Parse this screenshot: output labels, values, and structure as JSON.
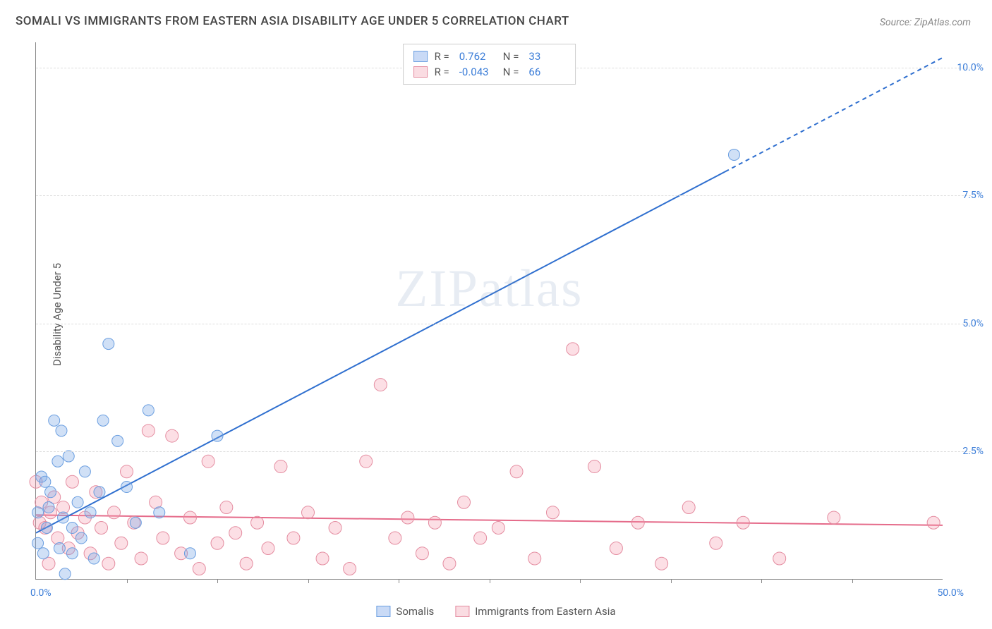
{
  "title": "SOMALI VS IMMIGRANTS FROM EASTERN ASIA DISABILITY AGE UNDER 5 CORRELATION CHART",
  "source": "Source: ZipAtlas.com",
  "ylabel": "Disability Age Under 5",
  "watermark": "ZIPatlas",
  "chart": {
    "type": "scatter",
    "xlim": [
      0,
      50
    ],
    "ylim": [
      0,
      10.5
    ],
    "xtick_start": "0.0%",
    "xtick_end": "50.0%",
    "xtick_positions": [
      5,
      10,
      15,
      20,
      25,
      30,
      35,
      40,
      45
    ],
    "yticks": [
      {
        "v": 2.5,
        "label": "2.5%"
      },
      {
        "v": 5.0,
        "label": "5.0%"
      },
      {
        "v": 7.5,
        "label": "7.5%"
      },
      {
        "v": 10.0,
        "label": "10.0%"
      }
    ],
    "background_color": "#ffffff",
    "grid_color": "#dddddd",
    "axis_color": "#888888",
    "tick_text_color": "#3b7dd8",
    "label_text_color": "#555555",
    "title_color": "#444444",
    "title_fontsize": 17,
    "label_fontsize": 15,
    "tick_fontsize": 14
  },
  "series": [
    {
      "name": "Somalis",
      "color_fill": "rgba(120,165,230,0.35)",
      "color_stroke": "#6a9ee0",
      "R": "0.762",
      "N": "33",
      "trend": {
        "x1": 0,
        "y1": 0.9,
        "x2": 50,
        "y2": 10.2,
        "solid_until_x": 38,
        "color": "#2f6fcf",
        "width": 2
      },
      "marker_r": 8,
      "points": [
        [
          0.1,
          0.7
        ],
        [
          0.1,
          1.3
        ],
        [
          0.3,
          2.0
        ],
        [
          0.4,
          0.5
        ],
        [
          0.5,
          1.9
        ],
        [
          0.6,
          1.0
        ],
        [
          0.7,
          1.4
        ],
        [
          0.8,
          1.7
        ],
        [
          1.0,
          3.1
        ],
        [
          1.2,
          2.3
        ],
        [
          1.3,
          0.6
        ],
        [
          1.4,
          2.9
        ],
        [
          1.5,
          1.2
        ],
        [
          1.6,
          0.1
        ],
        [
          1.8,
          2.4
        ],
        [
          2.0,
          1.0
        ],
        [
          2.0,
          0.5
        ],
        [
          2.3,
          1.5
        ],
        [
          2.5,
          0.8
        ],
        [
          2.7,
          2.1
        ],
        [
          3.0,
          1.3
        ],
        [
          3.2,
          0.4
        ],
        [
          3.5,
          1.7
        ],
        [
          3.7,
          3.1
        ],
        [
          4.0,
          4.6
        ],
        [
          4.5,
          2.7
        ],
        [
          5.0,
          1.8
        ],
        [
          5.5,
          1.1
        ],
        [
          6.2,
          3.3
        ],
        [
          6.8,
          1.3
        ],
        [
          8.5,
          0.5
        ],
        [
          10.0,
          2.8
        ],
        [
          38.5,
          8.3
        ]
      ]
    },
    {
      "name": "Immigrants from Eastern Asia",
      "color_fill": "rgba(245,150,170,0.3)",
      "color_stroke": "#e48ca0",
      "R": "-0.043",
      "N": "66",
      "trend": {
        "x1": 0,
        "y1": 1.25,
        "x2": 50,
        "y2": 1.05,
        "solid_until_x": 50,
        "color": "#e56b8a",
        "width": 2
      },
      "marker_r": 9,
      "points": [
        [
          0.0,
          1.9
        ],
        [
          0.2,
          1.1
        ],
        [
          0.3,
          1.5
        ],
        [
          0.5,
          1.0
        ],
        [
          0.7,
          0.3
        ],
        [
          0.8,
          1.3
        ],
        [
          1.0,
          1.6
        ],
        [
          1.2,
          0.8
        ],
        [
          1.5,
          1.4
        ],
        [
          1.8,
          0.6
        ],
        [
          2.0,
          1.9
        ],
        [
          2.3,
          0.9
        ],
        [
          2.7,
          1.2
        ],
        [
          3.0,
          0.5
        ],
        [
          3.3,
          1.7
        ],
        [
          3.6,
          1.0
        ],
        [
          4.0,
          0.3
        ],
        [
          4.3,
          1.3
        ],
        [
          4.7,
          0.7
        ],
        [
          5.0,
          2.1
        ],
        [
          5.4,
          1.1
        ],
        [
          5.8,
          0.4
        ],
        [
          6.2,
          2.9
        ],
        [
          6.6,
          1.5
        ],
        [
          7.0,
          0.8
        ],
        [
          7.5,
          2.8
        ],
        [
          8.0,
          0.5
        ],
        [
          8.5,
          1.2
        ],
        [
          9.0,
          0.2
        ],
        [
          9.5,
          2.3
        ],
        [
          10.0,
          0.7
        ],
        [
          10.5,
          1.4
        ],
        [
          11.0,
          0.9
        ],
        [
          11.6,
          0.3
        ],
        [
          12.2,
          1.1
        ],
        [
          12.8,
          0.6
        ],
        [
          13.5,
          2.2
        ],
        [
          14.2,
          0.8
        ],
        [
          15.0,
          1.3
        ],
        [
          15.8,
          0.4
        ],
        [
          16.5,
          1.0
        ],
        [
          17.3,
          0.2
        ],
        [
          18.2,
          2.3
        ],
        [
          19.0,
          3.8
        ],
        [
          19.8,
          0.8
        ],
        [
          20.5,
          1.2
        ],
        [
          21.3,
          0.5
        ],
        [
          22.0,
          1.1
        ],
        [
          22.8,
          0.3
        ],
        [
          23.6,
          1.5
        ],
        [
          24.5,
          0.8
        ],
        [
          25.5,
          1.0
        ],
        [
          26.5,
          2.1
        ],
        [
          27.5,
          0.4
        ],
        [
          28.5,
          1.3
        ],
        [
          29.6,
          4.5
        ],
        [
          30.8,
          2.2
        ],
        [
          32.0,
          0.6
        ],
        [
          33.2,
          1.1
        ],
        [
          34.5,
          0.3
        ],
        [
          36.0,
          1.4
        ],
        [
          37.5,
          0.7
        ],
        [
          39.0,
          1.1
        ],
        [
          41.0,
          0.4
        ],
        [
          44.0,
          1.2
        ],
        [
          49.5,
          1.1
        ]
      ]
    }
  ],
  "legend_top": {
    "r_label": "R =",
    "n_label": "N ="
  },
  "legend_bottom": [
    {
      "swatch": "blue",
      "label": "Somalis"
    },
    {
      "swatch": "pink",
      "label": "Immigrants from Eastern Asia"
    }
  ]
}
